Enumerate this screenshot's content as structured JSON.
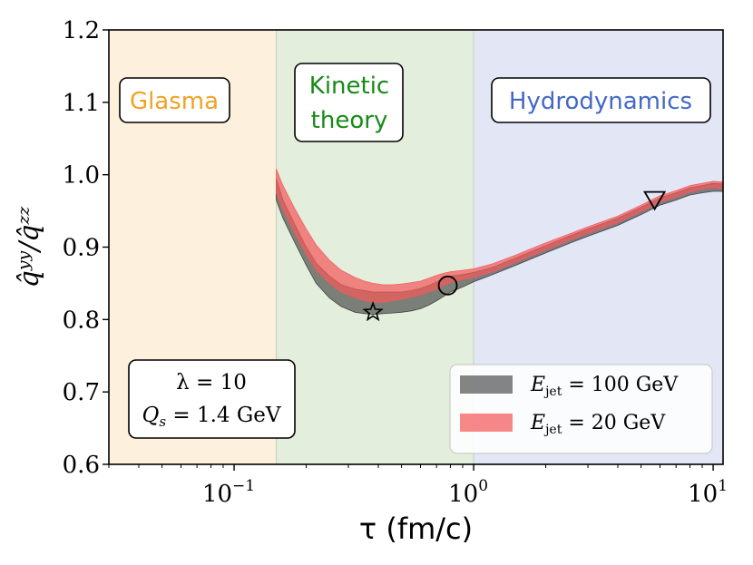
{
  "chart_data": {
    "type": "area",
    "x_scale": "log",
    "xlim": [
      0.03,
      11
    ],
    "ylim": [
      0.6,
      1.2
    ],
    "xlabel": "τ (fm/c)",
    "ylabel": "q̂ʸʸ/q̂ᶻᶻ",
    "x_ticks": [
      {
        "value": 0.1,
        "base": "10",
        "exp": "−1"
      },
      {
        "value": 1,
        "base": "10",
        "exp": "0"
      },
      {
        "value": 10,
        "base": "10",
        "exp": "1"
      }
    ],
    "y_ticks": [
      {
        "value": 0.6,
        "label": "0.6"
      },
      {
        "value": 0.7,
        "label": "0.7"
      },
      {
        "value": 0.8,
        "label": "0.8"
      },
      {
        "value": 0.9,
        "label": "0.9"
      },
      {
        "value": 1.0,
        "label": "1.0"
      },
      {
        "value": 1.1,
        "label": "1.1"
      },
      {
        "value": 1.2,
        "label": "1.2"
      }
    ],
    "regions": [
      {
        "label": "Glasma",
        "from": 0.03,
        "to": 0.15,
        "fill": "#fdf0dc",
        "text_color": "#f0a323"
      },
      {
        "label_line1": "Kinetic",
        "label_line2": "theory",
        "from": 0.15,
        "to": 1.0,
        "fill": "#e3eedd",
        "text_color": "#178a17"
      },
      {
        "label": "Hydrodynamics",
        "from": 1.0,
        "to": 11,
        "fill": "#e3e7f5",
        "text_color": "#4468c4"
      }
    ],
    "series": [
      {
        "name": "E_jet = 100 GeV",
        "legend_label": {
          "var": "E",
          "sub": "jet",
          "rest": " = 100 GeV"
        },
        "color": "#3a3a3a",
        "opacity": 0.62,
        "x": [
          0.15,
          0.16,
          0.18,
          0.2,
          0.22,
          0.25,
          0.28,
          0.32,
          0.35,
          0.38,
          0.42,
          0.46,
          0.5,
          0.55,
          0.6,
          0.65,
          0.7,
          0.75,
          0.8,
          0.9,
          1.0,
          1.2,
          1.5,
          2.0,
          2.5,
          3.0,
          4.0,
          5.0,
          6.0,
          7.0,
          8.0,
          9.0,
          10.0,
          11.0
        ],
        "lower": [
          0.965,
          0.94,
          0.905,
          0.875,
          0.85,
          0.83,
          0.818,
          0.81,
          0.808,
          0.807,
          0.808,
          0.809,
          0.81,
          0.812,
          0.815,
          0.82,
          0.826,
          0.832,
          0.838,
          0.845,
          0.852,
          0.862,
          0.875,
          0.892,
          0.905,
          0.915,
          0.93,
          0.945,
          0.958,
          0.965,
          0.972,
          0.975,
          0.977,
          0.977
        ],
        "upper": [
          0.995,
          0.965,
          0.93,
          0.9,
          0.878,
          0.86,
          0.848,
          0.842,
          0.84,
          0.838,
          0.838,
          0.838,
          0.838,
          0.84,
          0.843,
          0.847,
          0.852,
          0.857,
          0.86,
          0.862,
          0.865,
          0.872,
          0.885,
          0.902,
          0.915,
          0.925,
          0.94,
          0.955,
          0.968,
          0.975,
          0.982,
          0.985,
          0.988,
          0.987
        ]
      },
      {
        "name": "E_jet = 20 GeV",
        "legend_label": {
          "var": "E",
          "sub": "jet",
          "rest": " = 20 GeV"
        },
        "color": "#f45a5a",
        "opacity": 0.72,
        "x": [
          0.15,
          0.16,
          0.18,
          0.2,
          0.22,
          0.25,
          0.28,
          0.32,
          0.35,
          0.38,
          0.42,
          0.46,
          0.5,
          0.55,
          0.6,
          0.65,
          0.7,
          0.75,
          0.8,
          0.9,
          1.0,
          1.2,
          1.5,
          2.0,
          2.5,
          3.0,
          4.0,
          5.0,
          6.0,
          7.0,
          8.0,
          9.0,
          10.0,
          11.0
        ],
        "lower": [
          0.975,
          0.952,
          0.918,
          0.89,
          0.868,
          0.85,
          0.838,
          0.83,
          0.826,
          0.824,
          0.824,
          0.826,
          0.828,
          0.831,
          0.834,
          0.838,
          0.842,
          0.847,
          0.851,
          0.855,
          0.858,
          0.866,
          0.879,
          0.896,
          0.909,
          0.919,
          0.934,
          0.949,
          0.962,
          0.969,
          0.976,
          0.98,
          0.982,
          0.981
        ],
        "upper": [
          1.008,
          0.985,
          0.952,
          0.925,
          0.903,
          0.882,
          0.868,
          0.858,
          0.853,
          0.85,
          0.848,
          0.848,
          0.849,
          0.851,
          0.853,
          0.857,
          0.861,
          0.864,
          0.866,
          0.868,
          0.87,
          0.877,
          0.889,
          0.906,
          0.918,
          0.928,
          0.943,
          0.958,
          0.971,
          0.978,
          0.985,
          0.988,
          0.991,
          0.99
        ]
      }
    ],
    "markers": [
      {
        "shape": "star",
        "x": 0.38,
        "y": 0.81
      },
      {
        "shape": "circle",
        "x": 0.78,
        "y": 0.847
      },
      {
        "shape": "triangle-down",
        "x": 5.7,
        "y": 0.965
      }
    ],
    "params_box": {
      "line1": "λ = 10",
      "line2_var": "Q",
      "line2_sub": "s",
      "line2_rest": " = 1.4 GeV"
    },
    "legend_position": "lower-right"
  }
}
